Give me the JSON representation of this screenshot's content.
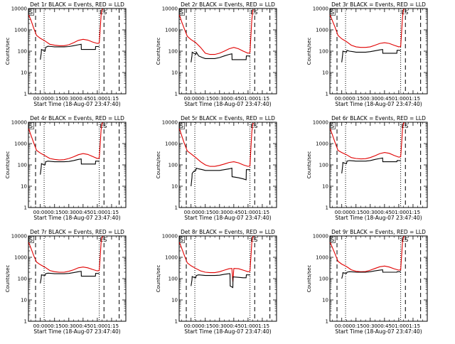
{
  "shared": {
    "ylabel": "Counts/sec",
    "xlabel": "Start Time (18-Aug-07 23:47:40)",
    "xtick_labels": [
      "00:00",
      "00:15",
      "00:30",
      "00:45",
      "01:00",
      "01:15"
    ],
    "ytick_labels": [
      "1",
      "10",
      "100",
      "1000",
      "10000"
    ],
    "marker_start": "S",
    "marker_end": "ES",
    "colors": {
      "events": "#000000",
      "lld": "#e00000"
    }
  },
  "chart_data": [
    {
      "type": "line",
      "title": "Det 1r BLACK = Events, RED = LLD",
      "x_unit": "minutes since 00:00",
      "xlim": [
        -12.5,
        90
      ],
      "ylim": [
        1,
        10000
      ],
      "yscale": "log",
      "dashed_vlines": [
        -5,
        67,
        83
      ],
      "dotted_vlines": [
        4,
        62
      ],
      "series": [
        {
          "x": [
            -12.3,
            -10,
            -7,
            -4,
            0,
            5,
            10,
            15,
            20,
            25,
            30,
            35,
            40,
            45,
            50,
            55,
            60,
            62,
            63,
            64,
            65,
            66
          ],
          "values": [
            5000,
            3000,
            1200,
            550,
            400,
            300,
            210,
            190,
            180,
            180,
            200,
            250,
            320,
            360,
            330,
            270,
            230,
            240,
            1000,
            5000,
            9000,
            9500
          ]
        },
        {
          "x": [
            0,
            1,
            1.2,
            3,
            5,
            5.5,
            8,
            12,
            15,
            20,
            25,
            30,
            35,
            40,
            43,
            43.2,
            50,
            55,
            58,
            58.2,
            60,
            61,
            62
          ],
          "values": [
            40,
            80,
            120,
            110,
            100,
            150,
            170,
            165,
            160,
            160,
            160,
            165,
            180,
            200,
            210,
            120,
            120,
            120,
            120,
            165,
            165,
            165,
            160
          ]
        }
      ]
    },
    {
      "type": "line",
      "title": "Det 2r BLACK = Events, RED = LLD",
      "x_unit": "minutes since 00:00",
      "xlim": [
        -12.5,
        90
      ],
      "ylim": [
        1,
        10000
      ],
      "yscale": "log",
      "dashed_vlines": [
        -5,
        67,
        83
      ],
      "dotted_vlines": [
        4,
        62
      ],
      "series": [
        {
          "x": [
            -12.3,
            -10,
            -7,
            -4,
            0,
            5,
            10,
            15,
            20,
            25,
            30,
            35,
            40,
            45,
            50,
            55,
            60,
            62,
            63,
            64,
            65,
            66
          ],
          "values": [
            5000,
            2500,
            1100,
            500,
            350,
            250,
            150,
            80,
            70,
            70,
            80,
            100,
            130,
            150,
            130,
            100,
            80,
            85,
            500,
            3000,
            8000,
            9000
          ]
        },
        {
          "x": [
            0,
            1,
            1.2,
            3,
            5,
            5.5,
            8,
            12,
            15,
            20,
            25,
            30,
            35,
            40,
            43,
            43.2,
            50,
            55,
            58,
            58.2,
            60,
            61,
            62
          ],
          "values": [
            30,
            60,
            90,
            80,
            70,
            90,
            60,
            50,
            45,
            45,
            45,
            50,
            60,
            70,
            75,
            40,
            40,
            40,
            40,
            60,
            60,
            60,
            55
          ]
        }
      ]
    },
    {
      "type": "line",
      "title": "Det 3r BLACK = Events, RED = LLD",
      "x_unit": "minutes since 00:00",
      "xlim": [
        -12.5,
        90
      ],
      "ylim": [
        1,
        10000
      ],
      "yscale": "log",
      "dashed_vlines": [
        -5,
        67,
        83
      ],
      "dotted_vlines": [
        4,
        62
      ],
      "series": [
        {
          "x": [
            -12.3,
            -10,
            -7,
            -4,
            0,
            5,
            10,
            15,
            20,
            25,
            30,
            35,
            40,
            45,
            50,
            55,
            60,
            62,
            63,
            64,
            65,
            66
          ],
          "values": [
            5000,
            2800,
            1300,
            550,
            380,
            280,
            190,
            160,
            150,
            150,
            160,
            190,
            230,
            250,
            230,
            190,
            160,
            165,
            800,
            4000,
            9000,
            9500
          ]
        },
        {
          "x": [
            0,
            1,
            1.2,
            3,
            5,
            5.5,
            8,
            12,
            15,
            20,
            25,
            30,
            35,
            40,
            43,
            43.2,
            50,
            55,
            58,
            58.2,
            60,
            61,
            62
          ],
          "values": [
            30,
            70,
            100,
            95,
            90,
            110,
            100,
            95,
            90,
            90,
            90,
            95,
            105,
            115,
            120,
            80,
            80,
            80,
            80,
            110,
            110,
            110,
            105
          ]
        }
      ]
    },
    {
      "type": "line",
      "title": "Det 4r BLACK = Events, RED = LLD",
      "x_unit": "minutes since 00:00",
      "xlim": [
        -12.5,
        90
      ],
      "ylim": [
        1,
        10000
      ],
      "yscale": "log",
      "dashed_vlines": [
        -5,
        67,
        83
      ],
      "dotted_vlines": [
        4,
        62
      ],
      "series": [
        {
          "x": [
            -12.3,
            -10,
            -7,
            -4,
            0,
            5,
            10,
            15,
            20,
            25,
            30,
            35,
            40,
            45,
            50,
            55,
            60,
            62,
            63,
            64,
            65,
            66
          ],
          "values": [
            5000,
            2600,
            1100,
            480,
            360,
            270,
            200,
            180,
            170,
            175,
            200,
            240,
            300,
            340,
            310,
            250,
            200,
            210,
            900,
            4500,
            9000,
            9500
          ]
        },
        {
          "x": [
            0,
            1,
            1.2,
            3,
            5,
            5.5,
            8,
            12,
            15,
            20,
            25,
            30,
            35,
            40,
            43,
            43.2,
            50,
            55,
            58,
            58.2,
            60,
            61,
            62
          ],
          "values": [
            35,
            80,
            115,
            105,
            100,
            140,
            150,
            145,
            140,
            140,
            140,
            145,
            160,
            180,
            190,
            110,
            110,
            110,
            110,
            150,
            150,
            150,
            145
          ]
        }
      ]
    },
    {
      "type": "line",
      "title": "Det 5r BLACK = Events, RED = LLD",
      "x_unit": "minutes since 00:00",
      "xlim": [
        -12.5,
        90
      ],
      "ylim": [
        1,
        10000
      ],
      "yscale": "log",
      "dashed_vlines": [
        -5,
        67,
        83
      ],
      "dotted_vlines": [
        4,
        62
      ],
      "series": [
        {
          "x": [
            -12.3,
            -10,
            -7,
            -4,
            0,
            5,
            10,
            15,
            20,
            25,
            30,
            35,
            40,
            45,
            50,
            55,
            60,
            62,
            63,
            64,
            65,
            66
          ],
          "values": [
            5000,
            2500,
            1000,
            450,
            330,
            220,
            140,
            100,
            85,
            85,
            95,
            110,
            130,
            140,
            125,
            100,
            85,
            90,
            600,
            3500,
            8500,
            9000
          ]
        },
        {
          "x": [
            0,
            1,
            1.2,
            3,
            5,
            5.5,
            8,
            12,
            15,
            20,
            25,
            30,
            35,
            40,
            43,
            43.2,
            50,
            55,
            58,
            58.2,
            60,
            61,
            62
          ],
          "values": [
            10,
            25,
            40,
            50,
            55,
            70,
            65,
            60,
            55,
            55,
            55,
            55,
            60,
            65,
            70,
            28,
            25,
            22,
            20,
            60,
            60,
            60,
            55
          ]
        }
      ]
    },
    {
      "type": "line",
      "title": "Det 6r BLACK = Events, RED = LLD",
      "x_unit": "minutes since 00:00",
      "xlim": [
        -12.5,
        90
      ],
      "ylim": [
        1,
        10000
      ],
      "yscale": "log",
      "dashed_vlines": [
        -5,
        67,
        83
      ],
      "dotted_vlines": [
        4,
        62
      ],
      "series": [
        {
          "x": [
            -12.3,
            -10,
            -7,
            -4,
            0,
            5,
            10,
            15,
            20,
            25,
            30,
            35,
            40,
            45,
            50,
            55,
            60,
            62,
            63,
            64,
            65,
            66
          ],
          "values": [
            5000,
            2700,
            1100,
            480,
            380,
            300,
            220,
            200,
            190,
            195,
            220,
            270,
            340,
            380,
            350,
            280,
            230,
            240,
            1000,
            5000,
            9000,
            9500
          ]
        },
        {
          "x": [
            0,
            1,
            1.2,
            3,
            5,
            5.5,
            8,
            12,
            15,
            20,
            25,
            30,
            35,
            40,
            43,
            43.2,
            50,
            55,
            58,
            58.2,
            60,
            61,
            62
          ],
          "values": [
            40,
            90,
            130,
            120,
            115,
            150,
            160,
            155,
            150,
            150,
            150,
            160,
            180,
            200,
            210,
            140,
            140,
            140,
            140,
            160,
            160,
            160,
            155
          ]
        }
      ]
    },
    {
      "type": "line",
      "title": "Det 7r BLACK = Events, RED = LLD",
      "x_unit": "minutes since 00:00",
      "xlim": [
        -12.5,
        90
      ],
      "ylim": [
        1,
        10000
      ],
      "yscale": "log",
      "dashed_vlines": [
        -5,
        67,
        83
      ],
      "dotted_vlines": [
        4,
        62
      ],
      "series": [
        {
          "x": [
            -12.3,
            -10,
            -7,
            -4,
            0,
            5,
            10,
            15,
            20,
            25,
            30,
            35,
            40,
            45,
            50,
            55,
            60,
            62,
            63,
            64,
            65,
            66
          ],
          "values": [
            5000,
            2800,
            1200,
            600,
            450,
            340,
            240,
            210,
            200,
            200,
            220,
            260,
            320,
            350,
            320,
            270,
            230,
            240,
            1000,
            5000,
            9000,
            9500
          ]
        },
        {
          "x": [
            0,
            1,
            1.2,
            3,
            5,
            5.5,
            8,
            12,
            15,
            20,
            25,
            30,
            35,
            40,
            43,
            43.2,
            50,
            55,
            58,
            58.2,
            60,
            61,
            62
          ],
          "values": [
            60,
            110,
            150,
            145,
            140,
            170,
            180,
            175,
            170,
            170,
            170,
            175,
            190,
            210,
            220,
            130,
            130,
            130,
            130,
            175,
            175,
            175,
            170
          ]
        }
      ]
    },
    {
      "type": "line",
      "title": "Det 8r BLACK = Events, RED = LLD",
      "x_unit": "minutes since 00:00",
      "xlim": [
        -12.5,
        90
      ],
      "ylim": [
        1,
        10000
      ],
      "yscale": "log",
      "dashed_vlines": [
        -5,
        67,
        83
      ],
      "dotted_vlines": [
        4,
        62
      ],
      "series": [
        {
          "x": [
            -12.3,
            -10,
            -7,
            -4,
            0,
            5,
            10,
            15,
            20,
            25,
            30,
            35,
            40,
            43,
            44,
            45,
            50,
            55,
            60,
            62,
            63,
            64,
            65,
            66
          ],
          "values": [
            5000,
            2800,
            1200,
            550,
            400,
            300,
            230,
            200,
            190,
            190,
            210,
            250,
            290,
            300,
            70,
            300,
            290,
            250,
            210,
            220,
            1000,
            5000,
            9000,
            9500
          ]
        },
        {
          "x": [
            0,
            1,
            1.2,
            3,
            5,
            5.5,
            8,
            12,
            15,
            20,
            25,
            30,
            35,
            40,
            41,
            41.2,
            44,
            44.2,
            50,
            55,
            58,
            58.2,
            60,
            61,
            62
          ],
          "values": [
            45,
            85,
            125,
            115,
            110,
            140,
            150,
            145,
            140,
            140,
            140,
            145,
            160,
            170,
            170,
            45,
            38,
            120,
            115,
            110,
            110,
            150,
            150,
            150,
            145
          ]
        }
      ]
    },
    {
      "type": "line",
      "title": "Det 9r BLACK = Events, RED = LLD",
      "x_unit": "minutes since 00:00",
      "xlim": [
        -12.5,
        90
      ],
      "ylim": [
        1,
        10000
      ],
      "yscale": "log",
      "dashed_vlines": [
        -5,
        67,
        83
      ],
      "dotted_vlines": [
        4,
        62
      ],
      "series": [
        {
          "x": [
            -12.3,
            -10,
            -7,
            -4,
            0,
            5,
            10,
            15,
            20,
            25,
            30,
            35,
            40,
            45,
            50,
            55,
            60,
            62,
            63,
            64,
            65,
            66
          ],
          "values": [
            5000,
            3000,
            1400,
            650,
            480,
            370,
            260,
            220,
            210,
            215,
            250,
            300,
            360,
            390,
            350,
            290,
            250,
            260,
            1200,
            5500,
            9000,
            9500
          ]
        },
        {
          "x": [
            0,
            1,
            1.2,
            3,
            5,
            5.5,
            8,
            12,
            15,
            20,
            25,
            30,
            35,
            40,
            43,
            43.2,
            50,
            55,
            58,
            58.2,
            60,
            61,
            62
          ],
          "values": [
            100,
            150,
            190,
            180,
            175,
            200,
            210,
            205,
            200,
            200,
            200,
            210,
            230,
            250,
            260,
            200,
            200,
            200,
            200,
            210,
            210,
            210,
            205
          ]
        }
      ]
    }
  ]
}
